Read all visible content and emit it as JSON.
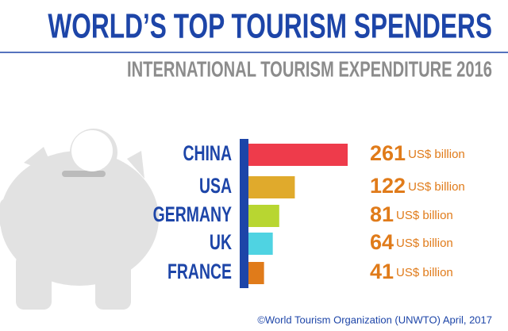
{
  "chart_data": {
    "type": "bar",
    "orientation": "horizontal",
    "title": "WORLD’S TOP TOURISM SPENDERS",
    "subtitle": "INTERNATIONAL TOURISM EXPENDITURE 2016",
    "categories": [
      "CHINA",
      "USA",
      "GERMANY",
      "UK",
      "FRANCE"
    ],
    "values": [
      261,
      122,
      81,
      64,
      41
    ],
    "unit": "US$ billion",
    "colors": [
      "#ee3b4b",
      "#e0aa2c",
      "#b8d631",
      "#4fd3e2",
      "#e07b1a"
    ],
    "source": "©World Tourism Organization (UNWTO) April, 2017"
  }
}
